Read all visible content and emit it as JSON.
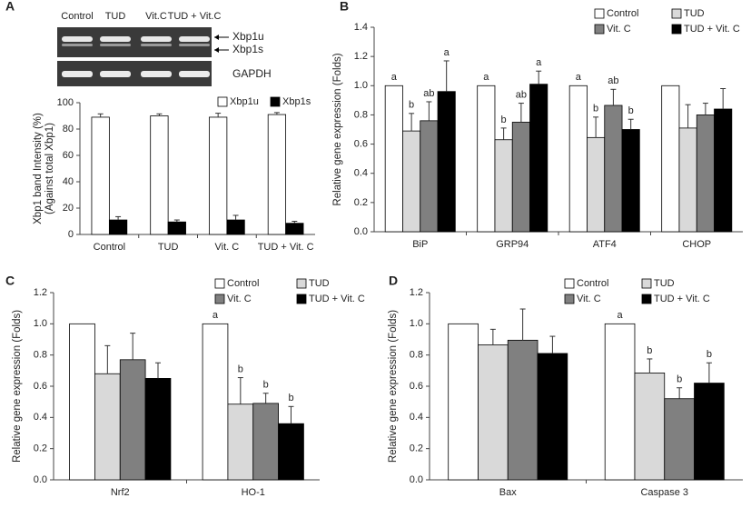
{
  "chart_data": [
    {
      "type": "bar",
      "panel_label": "A",
      "gel": {
        "lanes": [
          "Control",
          "TUD",
          "Vit.C",
          "TUD + Vit.C"
        ],
        "bands": [
          "Xbp1u",
          "Xbp1s"
        ],
        "loading_control": "GAPDH"
      },
      "y_label": [
        "Xbp1 band Intensity (%)",
        "(Against total Xbp1)"
      ],
      "categories": [
        "Control",
        "TUD",
        "Vit. C",
        "TUD + Vit. C"
      ],
      "series": [
        {
          "name": "Xbp1u",
          "color": "#ffffff",
          "values": [
            89,
            90,
            89,
            91
          ],
          "errors": [
            2.5,
            1.5,
            3,
            1.5
          ]
        },
        {
          "name": "Xbp1s",
          "color": "#000000",
          "values": [
            11,
            9.5,
            11,
            8.5
          ],
          "errors": [
            2.5,
            1.5,
            3.5,
            1.5
          ]
        }
      ],
      "ylim": [
        0,
        100
      ],
      "yticks": [
        0,
        20,
        40,
        60,
        80,
        100
      ]
    },
    {
      "type": "bar",
      "panel_label": "B",
      "y_label": [
        "Relative gene expression (Folds)"
      ],
      "categories": [
        "BiP",
        "GRP94",
        "ATF4",
        "CHOP"
      ],
      "series": [
        {
          "name": "Control",
          "color": "#ffffff",
          "values": [
            1,
            1,
            1,
            1
          ],
          "errors": [
            null,
            null,
            null,
            null
          ],
          "letters": [
            "a",
            "a",
            "a",
            null
          ]
        },
        {
          "name": "TUD",
          "color": "#d9d9d9",
          "values": [
            0.69,
            0.63,
            0.645,
            0.71
          ],
          "errors": [
            0.12,
            0.08,
            0.14,
            0.16
          ],
          "letters": [
            "b",
            "b",
            "b",
            null
          ]
        },
        {
          "name": "Vit. C",
          "color": "#808080",
          "values": [
            0.76,
            0.75,
            0.865,
            0.8
          ],
          "errors": [
            0.13,
            0.13,
            0.11,
            0.08
          ],
          "letters": [
            "ab",
            "ab",
            "ab",
            null
          ]
        },
        {
          "name": "TUD + Vit. C",
          "color": "#000000",
          "values": [
            0.96,
            1.01,
            0.7,
            0.84
          ],
          "errors": [
            0.21,
            0.09,
            0.07,
            0.14
          ],
          "letters": [
            "a",
            "a",
            "b",
            null
          ]
        }
      ],
      "ylim": [
        0,
        1.4
      ],
      "yticks": [
        {
          "value": 0,
          "label": "0.0"
        },
        0.2,
        0.4,
        0.6,
        0.8,
        {
          "value": 1,
          "label": "1.0"
        },
        1.2,
        1.4
      ]
    },
    {
      "type": "bar",
      "panel_label": "C",
      "y_label": [
        "Relative gene expression (Folds)"
      ],
      "categories": [
        "Nrf2",
        "HO-1"
      ],
      "series": [
        {
          "name": "Control",
          "color": "#ffffff",
          "values": [
            1,
            1
          ],
          "errors": [
            null,
            null
          ],
          "letters": [
            null,
            "a"
          ]
        },
        {
          "name": "TUD",
          "color": "#d9d9d9",
          "values": [
            0.68,
            0.485
          ],
          "errors": [
            0.18,
            0.17
          ],
          "letters": [
            null,
            "b"
          ]
        },
        {
          "name": "Vit. C",
          "color": "#808080",
          "values": [
            0.77,
            0.49
          ],
          "errors": [
            0.17,
            0.065
          ],
          "letters": [
            null,
            "b"
          ]
        },
        {
          "name": "TUD + Vit. C",
          "color": "#000000",
          "values": [
            0.65,
            0.36
          ],
          "errors": [
            0.1,
            0.11
          ],
          "letters": [
            null,
            "b"
          ]
        }
      ],
      "ylim": [
        0,
        1.2
      ],
      "yticks": [
        {
          "value": 0,
          "label": "0.0"
        },
        0.2,
        0.4,
        0.6,
        0.8,
        {
          "value": 1,
          "label": "1.0"
        },
        1.2
      ]
    },
    {
      "type": "bar",
      "panel_label": "D",
      "y_label": [
        "Relative gene expression (Folds)"
      ],
      "categories": [
        "Bax",
        "Caspase 3"
      ],
      "series": [
        {
          "name": "Control",
          "color": "#ffffff",
          "values": [
            1,
            1
          ],
          "errors": [
            null,
            null
          ],
          "letters": [
            null,
            "a"
          ]
        },
        {
          "name": "TUD",
          "color": "#d9d9d9",
          "values": [
            0.865,
            0.685
          ],
          "errors": [
            0.1,
            0.09
          ],
          "letters": [
            null,
            "b"
          ]
        },
        {
          "name": "Vit. C",
          "color": "#808080",
          "values": [
            0.895,
            0.52
          ],
          "errors": [
            0.2,
            0.07
          ],
          "letters": [
            null,
            "b"
          ]
        },
        {
          "name": "TUD + Vit. C",
          "color": "#000000",
          "values": [
            0.81,
            0.62
          ],
          "errors": [
            0.11,
            0.13
          ],
          "letters": [
            null,
            "b"
          ]
        }
      ],
      "ylim": [
        0,
        1.2
      ],
      "yticks": [
        {
          "value": 0,
          "label": "0.0"
        },
        0.2,
        0.4,
        0.6,
        0.8,
        {
          "value": 1,
          "label": "1.0"
        },
        1.2
      ]
    }
  ]
}
